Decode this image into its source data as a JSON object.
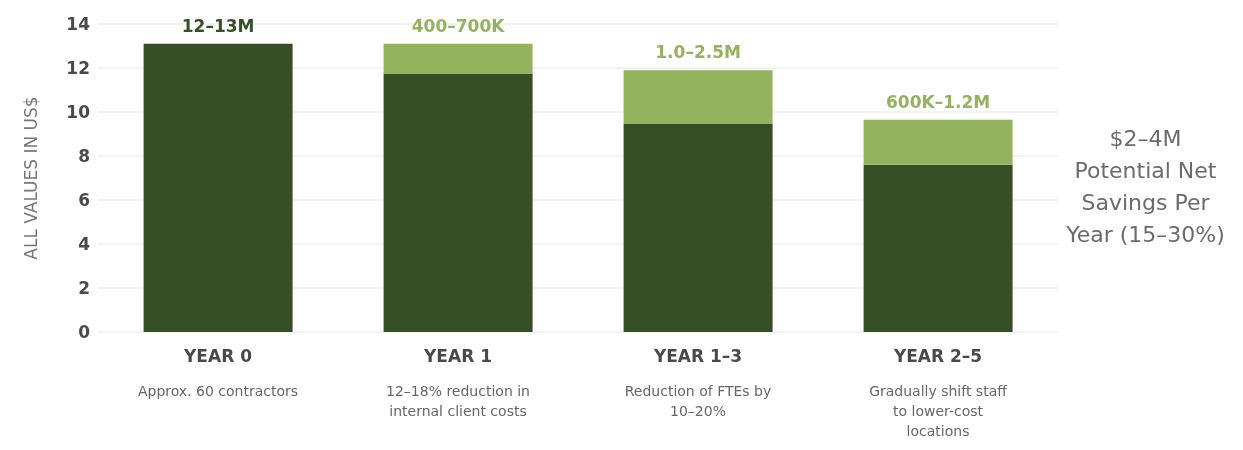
{
  "chart_data": {
    "type": "bar",
    "stacked": true,
    "ylabel": "ALL VALUES IN US$",
    "categories": [
      "YEAR 0",
      "YEAR 1",
      "YEAR 1–3",
      "YEAR 2–5"
    ],
    "series": [
      {
        "color": "#364f24",
        "values": [
          13.1,
          11.75,
          9.45,
          7.6
        ]
      },
      {
        "color": "#93b35c",
        "values": [
          null,
          1.35,
          2.45,
          2.05
        ]
      }
    ],
    "totals": [
      "12–13M",
      "400–700K",
      "1.0–2.5M",
      "600K–1.2M"
    ],
    "ylim": [
      0,
      14
    ],
    "yticks": [
      0,
      2,
      4,
      6,
      8,
      10,
      12,
      14
    ],
    "grid": "y",
    "legend": false,
    "annotations": [
      "Approx. 60 contractors",
      "12–18% reduction in internal client costs",
      "Reduction of FTEs by 10–20%",
      "Gradually shift staff to lower-cost locations",
      "$2–4M Potential Net Savings Per Year (15–30%)"
    ]
  }
}
